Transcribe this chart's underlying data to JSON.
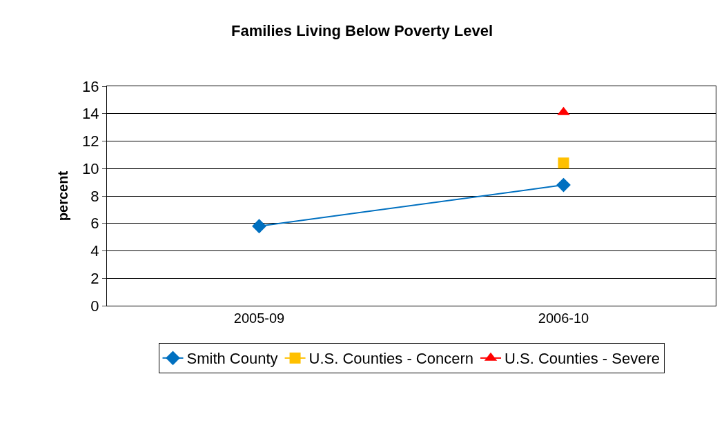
{
  "chart_data": {
    "type": "line",
    "title": "Families Living Below Poverty Level",
    "ylabel": "percent",
    "categories": [
      "2005-09",
      "2006-10"
    ],
    "series": [
      {
        "name": "Smith County",
        "color": "#0070c0",
        "values": [
          5.8,
          8.8
        ],
        "marker": "diamond"
      },
      {
        "name": "U.S. Counties - Concern",
        "color": "#ffc000",
        "values": [
          null,
          10.4
        ],
        "marker": "square"
      },
      {
        "name": "U.S. Counties - Severe",
        "color": "#ff0000",
        "values": [
          null,
          14.1
        ],
        "marker": "triangle"
      }
    ],
    "ylim": [
      0,
      16
    ],
    "yticks": [
      0,
      2,
      4,
      6,
      8,
      10,
      12,
      14,
      16
    ],
    "grid": "y",
    "legend": "bottom",
    "line_style": "solid"
  }
}
